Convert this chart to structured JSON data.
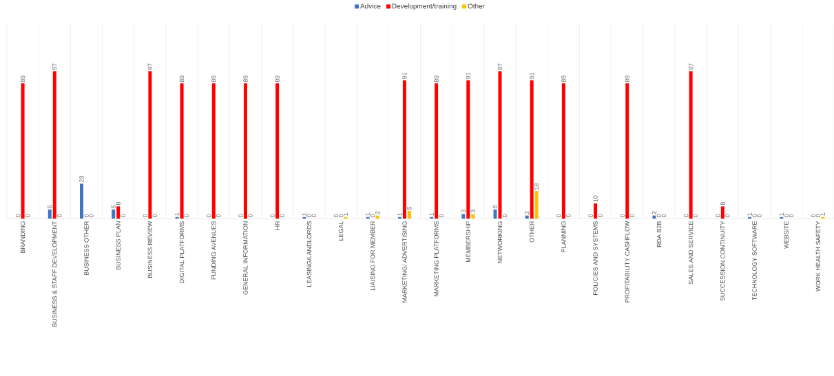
{
  "chart_data": {
    "type": "bar",
    "categories": [
      "BRANDING",
      "BUSINESS & STAFF DEVELOPMENT",
      "BUSINESS OTHER",
      "BUSINESS PLAN",
      "BUSINESS REVIEW",
      "DIGITAL PLATFORMS",
      "FUNDING AVENUES",
      "GENERAL INFORMATION",
      "HR",
      "LEASING/LANDLORDS",
      "LEGAL",
      "LIAISING FOR MEMBER",
      "MARKETING/ ADVERTISING",
      "MARKETING PLATFORMS",
      "MEMBERSHIP",
      "NETWORKING",
      "OTHER",
      "PLANNING",
      "POLICIES AND SYSTEMS",
      "PROFITABILITY CASHFLOW",
      "RDA B2B",
      "SALES AND SERVICE",
      "SUCCESSION CONTINUITY",
      "TECHNOLOGY SOFTWARE",
      "WEBSITE",
      "WORK HEALTH SAFETY"
    ],
    "series": [
      {
        "name": "Advice",
        "color": "#4472c4",
        "values": [
          0,
          6,
          23,
          6,
          0,
          1,
          0,
          0,
          0,
          1,
          0,
          1,
          1,
          1,
          3,
          6,
          2,
          0,
          0,
          0,
          2,
          0,
          0,
          1,
          1,
          0
        ]
      },
      {
        "name": "Development/training",
        "color": "#ff0000",
        "values": [
          89,
          97,
          0,
          8,
          97,
          89,
          89,
          89,
          89,
          0,
          0,
          0,
          91,
          89,
          91,
          97,
          91,
          89,
          10,
          89,
          0,
          97,
          8,
          0,
          0,
          0
        ]
      },
      {
        "name": "Other",
        "color": "#ffc000",
        "values": [
          0,
          0,
          0,
          0,
          0,
          0,
          0,
          0,
          0,
          0,
          1,
          2,
          5,
          0,
          3,
          0,
          18,
          0,
          0,
          0,
          0,
          0,
          0,
          0,
          0,
          1
        ]
      }
    ],
    "data_labels": true,
    "grid": "x",
    "legend": "top"
  }
}
